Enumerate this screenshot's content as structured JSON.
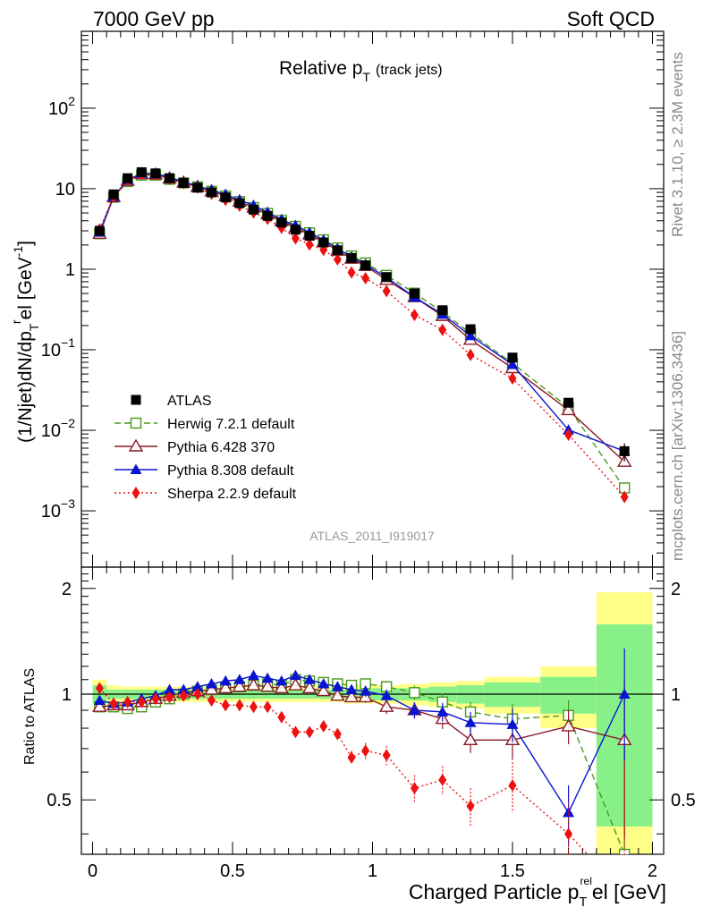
{
  "header": {
    "left": "7000 GeV pp",
    "right": "Soft QCD"
  },
  "side": {
    "rivet": "Rivet 3.1.10, ≥ 2.3M events",
    "mcplots": "mcplots.cern.ch [arXiv:1306.3436]"
  },
  "chart_data": {
    "type": "scatter",
    "title_main": "Relative p",
    "title_sub": "T",
    "title_extra": "(track jets)",
    "watermark": "ATLAS_2011_I919017",
    "xlabel": "Charged Particle p",
    "xlabel_sub": "T",
    "xlabel_sup": "rel",
    "xlabel_unit": "el [GeV]",
    "ylabel": "(1/Njet)dN/dp",
    "ylabel_sub": "T",
    "ylabel_sup": "r",
    "ylabel_tail": "el [GeV",
    "ylabel_exp": "-1",
    "ratio_ylabel": "Ratio to ATLAS",
    "xlim": [
      -0.04,
      2.04
    ],
    "ylim": [
      0.0002,
      900
    ],
    "ylog": true,
    "ratio_ylim": [
      0.35,
      2.3
    ],
    "x_ticks": [
      "0",
      "0.5",
      "1",
      "1.5",
      "2"
    ],
    "y_ticks": [
      "10^-3",
      "10^-2",
      "10^-1",
      "1",
      "10",
      "10^2"
    ],
    "ratio_ticks": [
      "0.5",
      "1",
      "2"
    ],
    "legend": [
      {
        "key": "atlas",
        "label": "ATLAS"
      },
      {
        "key": "herwig",
        "label": "Herwig 7.2.1 default"
      },
      {
        "key": "py6",
        "label": "Pythia 6.428 370"
      },
      {
        "key": "py8",
        "label": "Pythia 8.308 default"
      },
      {
        "key": "sherpa",
        "label": "Sherpa 2.2.9 default"
      }
    ],
    "colors": {
      "atlas": "#000000",
      "herwig": "#4a9a1a",
      "py6": "#8b1a2a",
      "py8": "#0a14d0",
      "sherpa": "#ee1111",
      "band_outer": "#ffff88",
      "band_inner": "#88f088"
    },
    "x": [
      0.025,
      0.075,
      0.125,
      0.175,
      0.225,
      0.275,
      0.325,
      0.375,
      0.425,
      0.475,
      0.525,
      0.575,
      0.625,
      0.675,
      0.725,
      0.775,
      0.825,
      0.875,
      0.925,
      0.975,
      1.05,
      1.15,
      1.25,
      1.35,
      1.5,
      1.7,
      1.9
    ],
    "x_edges": [
      0,
      0.05,
      0.1,
      0.15,
      0.2,
      0.25,
      0.3,
      0.35,
      0.4,
      0.45,
      0.5,
      0.55,
      0.6,
      0.65,
      0.7,
      0.75,
      0.8,
      0.85,
      0.9,
      0.95,
      1.0,
      1.1,
      1.2,
      1.3,
      1.4,
      1.6,
      1.8,
      2.0
    ],
    "atlas_values": [
      3.0,
      8.5,
      13.5,
      16.0,
      15.5,
      13.5,
      11.8,
      10.3,
      9.0,
      7.8,
      6.6,
      5.5,
      4.6,
      3.8,
      3.1,
      2.6,
      2.15,
      1.72,
      1.38,
      1.12,
      0.8,
      0.5,
      0.31,
      0.18,
      0.08,
      0.022,
      0.0055
    ],
    "series": [
      {
        "name": "Herwig 7.2.1 default",
        "key": "herwig",
        "ratio": [
          0.92,
          0.92,
          0.91,
          0.92,
          0.95,
          0.97,
          1.0,
          1.02,
          1.03,
          1.04,
          1.05,
          1.06,
          1.07,
          1.06,
          1.1,
          1.09,
          1.08,
          1.07,
          1.06,
          1.07,
          1.05,
          1.01,
          0.95,
          0.89,
          0.85,
          0.87,
          0.35
        ]
      },
      {
        "name": "Pythia 6.428 370",
        "key": "py6",
        "ratio": [
          0.92,
          0.93,
          0.93,
          0.95,
          0.97,
          0.99,
          1.01,
          1.02,
          1.03,
          1.04,
          1.05,
          1.06,
          1.05,
          1.04,
          1.06,
          1.04,
          1.02,
          0.99,
          0.98,
          0.98,
          0.92,
          0.9,
          0.85,
          0.74,
          0.74,
          0.81,
          0.74
        ]
      },
      {
        "name": "Pythia 8.308 default",
        "key": "py8",
        "ratio": [
          0.96,
          0.94,
          0.95,
          0.97,
          0.99,
          1.03,
          1.03,
          1.05,
          1.07,
          1.09,
          1.1,
          1.13,
          1.11,
          1.09,
          1.13,
          1.1,
          1.07,
          1.05,
          1.03,
          1.02,
          0.99,
          0.9,
          0.89,
          0.83,
          0.82,
          0.46,
          1.0
        ]
      },
      {
        "name": "Sherpa 2.2.9 default",
        "key": "sherpa",
        "ratio": [
          1.04,
          0.94,
          0.95,
          0.95,
          0.97,
          0.98,
          0.99,
          1.0,
          0.96,
          0.93,
          0.93,
          0.92,
          0.92,
          0.86,
          0.78,
          0.78,
          0.81,
          0.77,
          0.66,
          0.69,
          0.67,
          0.54,
          0.57,
          0.48,
          0.55,
          0.4,
          0.27
        ]
      }
    ],
    "band_outer": [
      0.1,
      0.06,
      0.05,
      0.05,
      0.05,
      0.05,
      0.05,
      0.05,
      0.05,
      0.05,
      0.05,
      0.05,
      0.05,
      0.05,
      0.05,
      0.05,
      0.05,
      0.05,
      0.06,
      0.06,
      0.06,
      0.07,
      0.08,
      0.09,
      0.12,
      0.2,
      0.95
    ],
    "band_inner": [
      0.06,
      0.03,
      0.03,
      0.03,
      0.03,
      0.03,
      0.03,
      0.03,
      0.03,
      0.03,
      0.03,
      0.03,
      0.03,
      0.03,
      0.03,
      0.03,
      0.03,
      0.03,
      0.03,
      0.03,
      0.04,
      0.04,
      0.05,
      0.06,
      0.08,
      0.12,
      0.58
    ]
  }
}
